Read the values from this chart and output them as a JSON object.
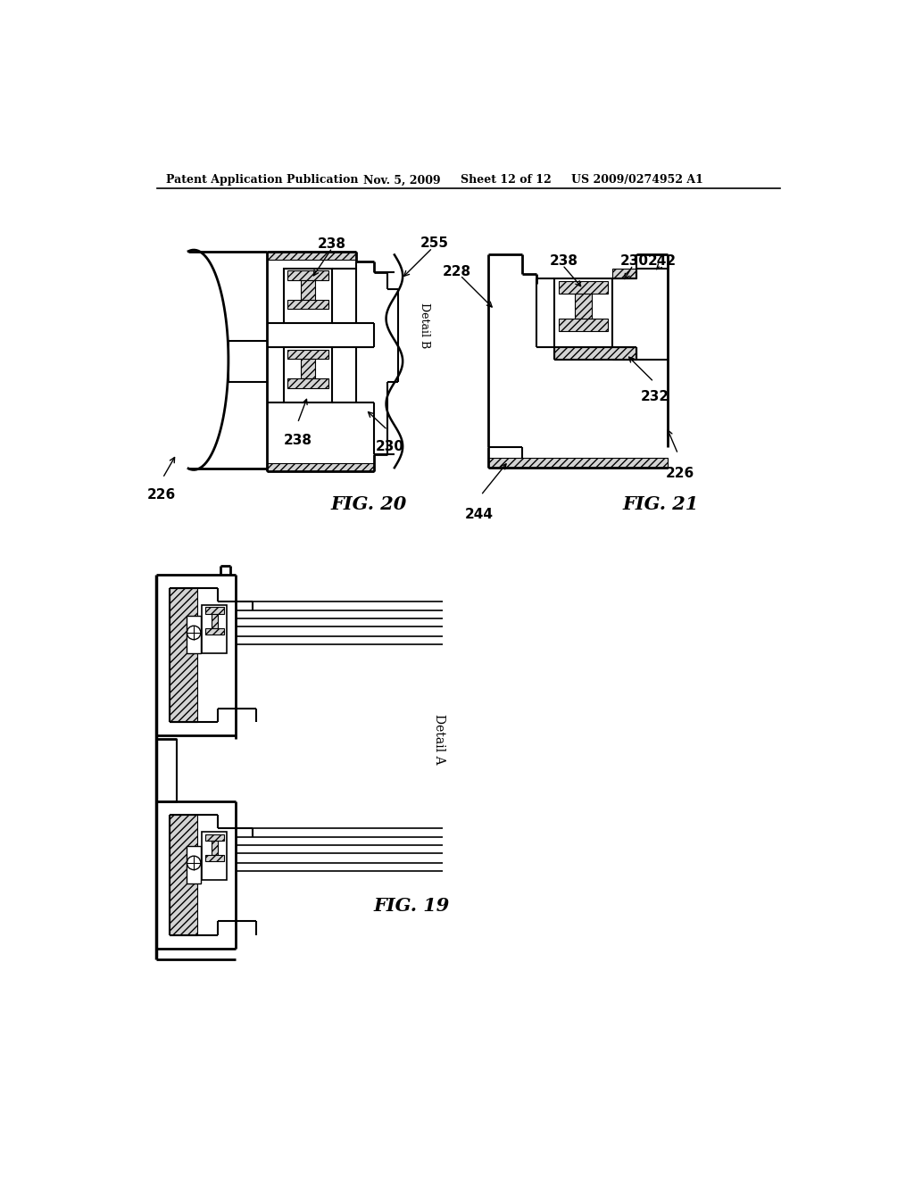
{
  "bg_color": "#ffffff",
  "header_text": "Patent Application Publication",
  "header_date": "Nov. 5, 2009",
  "header_sheet": "Sheet 12 of 12",
  "header_patent": "US 2009/0274952 A1",
  "fig20_label": "FIG. 20",
  "fig21_label": "FIG. 21",
  "fig19_label": "FIG. 19",
  "detail_a": "Detail A",
  "detail_b": "Detail B",
  "font_color": "#000000"
}
